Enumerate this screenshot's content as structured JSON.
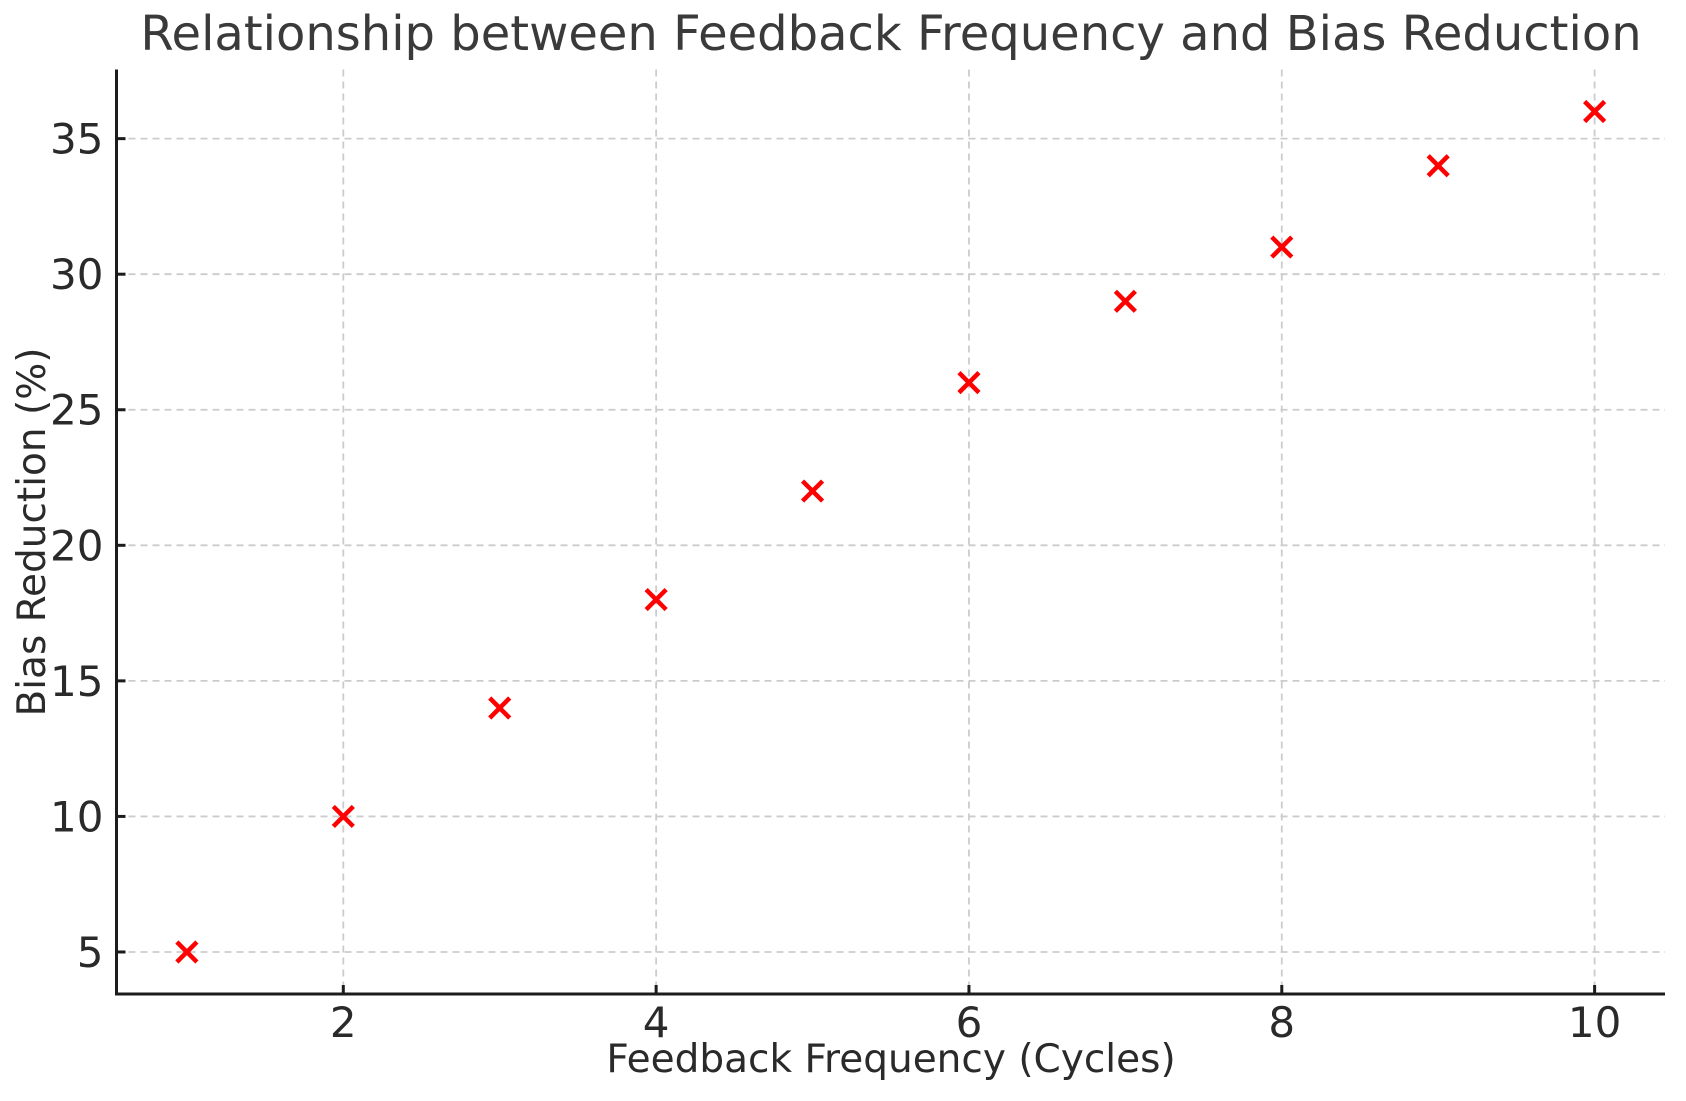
{
  "figure": {
    "background": "#ffffff"
  },
  "chart_data": {
    "type": "scatter",
    "title": "Relationship between Feedback Frequency and Bias Reduction",
    "xlabel": "Feedback Frequency (Cycles)",
    "ylabel": "Bias Reduction (%)",
    "x": [
      1,
      2,
      3,
      4,
      5,
      6,
      7,
      8,
      9,
      10
    ],
    "y": [
      5,
      10,
      14,
      18,
      22,
      26,
      29,
      31,
      34,
      36
    ],
    "marker": "x",
    "marker_color": "#ff0000",
    "xticks": [
      2,
      4,
      6,
      8,
      10
    ],
    "yticks": [
      5,
      10,
      15,
      20,
      25,
      30,
      35
    ],
    "xlim": [
      0.55,
      10.45
    ],
    "ylim": [
      3.45,
      37.55
    ],
    "grid": true,
    "grid_style": "dashed",
    "grid_color": "#cccccc",
    "legend_position": "none",
    "colors": {
      "axis": "#1c1c1c",
      "tick_label": "#2a2a2a",
      "title": "#3a3a3a"
    }
  }
}
